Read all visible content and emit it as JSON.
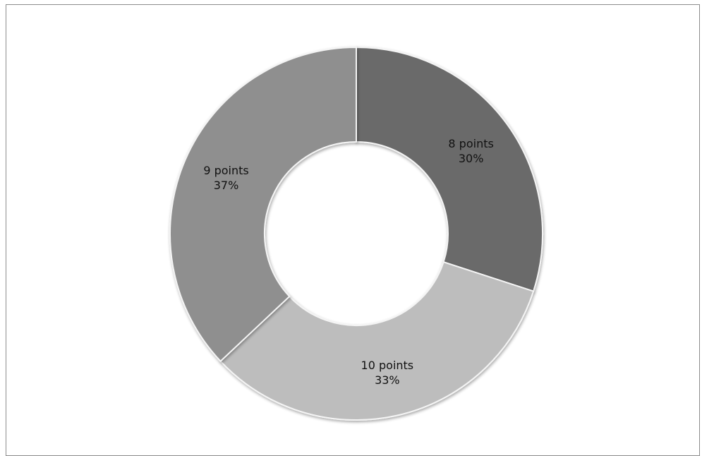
{
  "chart_data": {
    "type": "pie",
    "variant": "donut",
    "title": "",
    "start_angle_deg": 0,
    "direction": "clockwise",
    "slices": [
      {
        "label": "8 points",
        "value": 30,
        "pct_label": "30%",
        "color": "#6b6b6b"
      },
      {
        "label": "10 points",
        "value": 33,
        "pct_label": "33%",
        "color": "#bdbdbd"
      },
      {
        "label": "9 points",
        "value": 37,
        "pct_label": "37%",
        "color": "#8f8f8f"
      }
    ],
    "legend": "none"
  }
}
